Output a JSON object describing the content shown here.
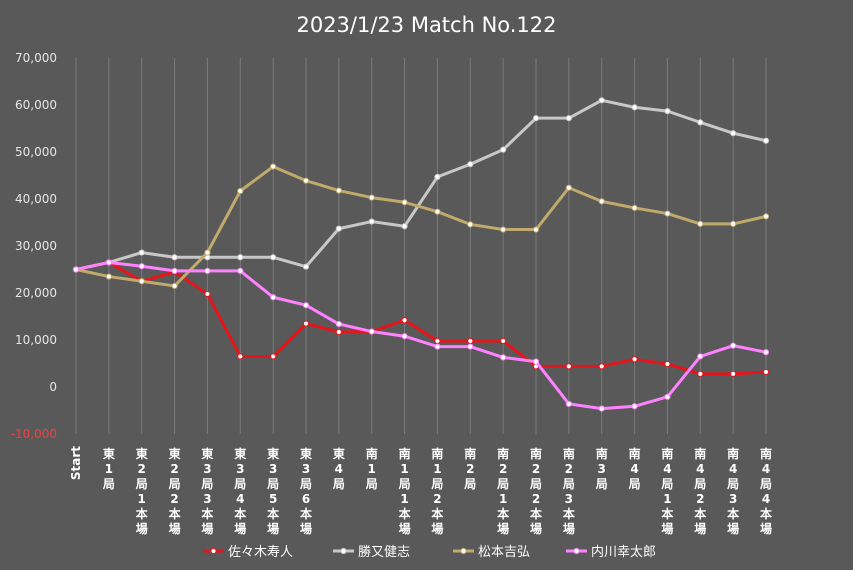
{
  "chart_data": {
    "type": "line",
    "title": "2023/1/23 Match No.122",
    "xlabel": "",
    "ylabel": "",
    "ylim": [
      -10000,
      70000
    ],
    "y_ticks": [
      "70,000",
      "60,000",
      "50,000",
      "40,000",
      "30,000",
      "20,000",
      "10,000",
      "0",
      "-10,000"
    ],
    "y_tick_values": [
      70000,
      60000,
      50000,
      40000,
      30000,
      20000,
      10000,
      0,
      -10000
    ],
    "grid": "vertical",
    "legend": "bottom",
    "categories": [
      "Start",
      "東1局",
      "東2局 1本場",
      "東2局 2本場",
      "東3局3本場",
      "東3局4本場",
      "東3局5本場",
      "東3局6本場",
      "東4局",
      "南1局",
      "南1局1本場",
      "南1局2本場",
      "南2局",
      "南2局1本場",
      "南2局2本場",
      "南2局3本場",
      "南3局",
      "南4局",
      "南4局1本場",
      "南4局2本場",
      "南4局3本場",
      "南4局4本場"
    ],
    "series": [
      {
        "name": "佐々木寿人",
        "color": "#e8141b",
        "values": [
          25000,
          26500,
          22500,
          24500,
          19800,
          6500,
          6500,
          13500,
          11700,
          11800,
          14200,
          9800,
          9800,
          9800,
          4400,
          4400,
          4400,
          5900,
          4900,
          2800,
          2800,
          3200
        ]
      },
      {
        "name": "勝又健志",
        "color": "#c8c8c8",
        "values": [
          25000,
          26500,
          28600,
          27600,
          27600,
          27600,
          27600,
          25600,
          33700,
          35200,
          34200,
          44700,
          47400,
          50500,
          57200,
          57200,
          61000,
          59500,
          58700,
          56300,
          54000,
          52400
        ]
      },
      {
        "name": "松本吉弘",
        "color": "#c0aa6c",
        "values": [
          25000,
          23500,
          22500,
          21500,
          28600,
          41700,
          46900,
          43900,
          41800,
          40300,
          39300,
          37300,
          34600,
          33500,
          33500,
          42400,
          39500,
          38100,
          36900,
          34700,
          34700,
          36300
        ]
      },
      {
        "name": "内川幸太郎",
        "color": "#ff82ff",
        "values": [
          25000,
          26500,
          25700,
          24700,
          24700,
          24700,
          19100,
          17400,
          13400,
          11800,
          10800,
          8600,
          8600,
          6300,
          5400,
          -3600,
          -4600,
          -4100,
          -2100,
          6500,
          8800,
          7400
        ]
      }
    ]
  }
}
